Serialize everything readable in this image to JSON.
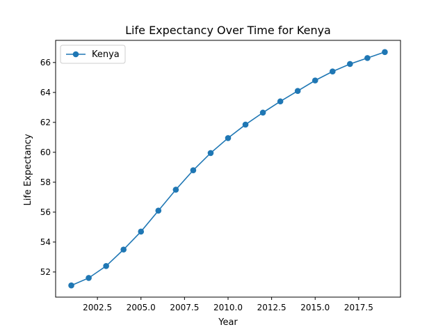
{
  "chart_data": {
    "type": "line",
    "title": "Life Expectancy Over Time for Kenya",
    "xlabel": "Year",
    "ylabel": "Life Expectancy",
    "xlim": [
      2000.1,
      2019.9
    ],
    "ylim": [
      50.32,
      67.48
    ],
    "xticks": [
      2002.5,
      2005.0,
      2007.5,
      2010.0,
      2012.5,
      2015.0,
      2017.5
    ],
    "xtick_labels": [
      "2002.5",
      "2005.0",
      "2007.5",
      "2010.0",
      "2012.5",
      "2015.0",
      "2017.5"
    ],
    "yticks": [
      52,
      54,
      56,
      58,
      60,
      62,
      64,
      66
    ],
    "ytick_labels": [
      "52",
      "54",
      "56",
      "58",
      "60",
      "62",
      "64",
      "66"
    ],
    "grid": false,
    "legend": "upper-left",
    "series": [
      {
        "name": "Kenya",
        "color": "#1f77b4",
        "marker": "circle",
        "x": [
          2001,
          2002,
          2003,
          2004,
          2005,
          2006,
          2007,
          2008,
          2009,
          2010,
          2011,
          2012,
          2013,
          2014,
          2015,
          2016,
          2017,
          2018,
          2019
        ],
        "y": [
          51.1,
          51.6,
          52.4,
          53.5,
          54.7,
          56.1,
          57.5,
          58.8,
          59.95,
          60.95,
          61.85,
          62.65,
          63.4,
          64.1,
          64.8,
          65.4,
          65.9,
          66.3,
          66.7
        ]
      }
    ]
  }
}
